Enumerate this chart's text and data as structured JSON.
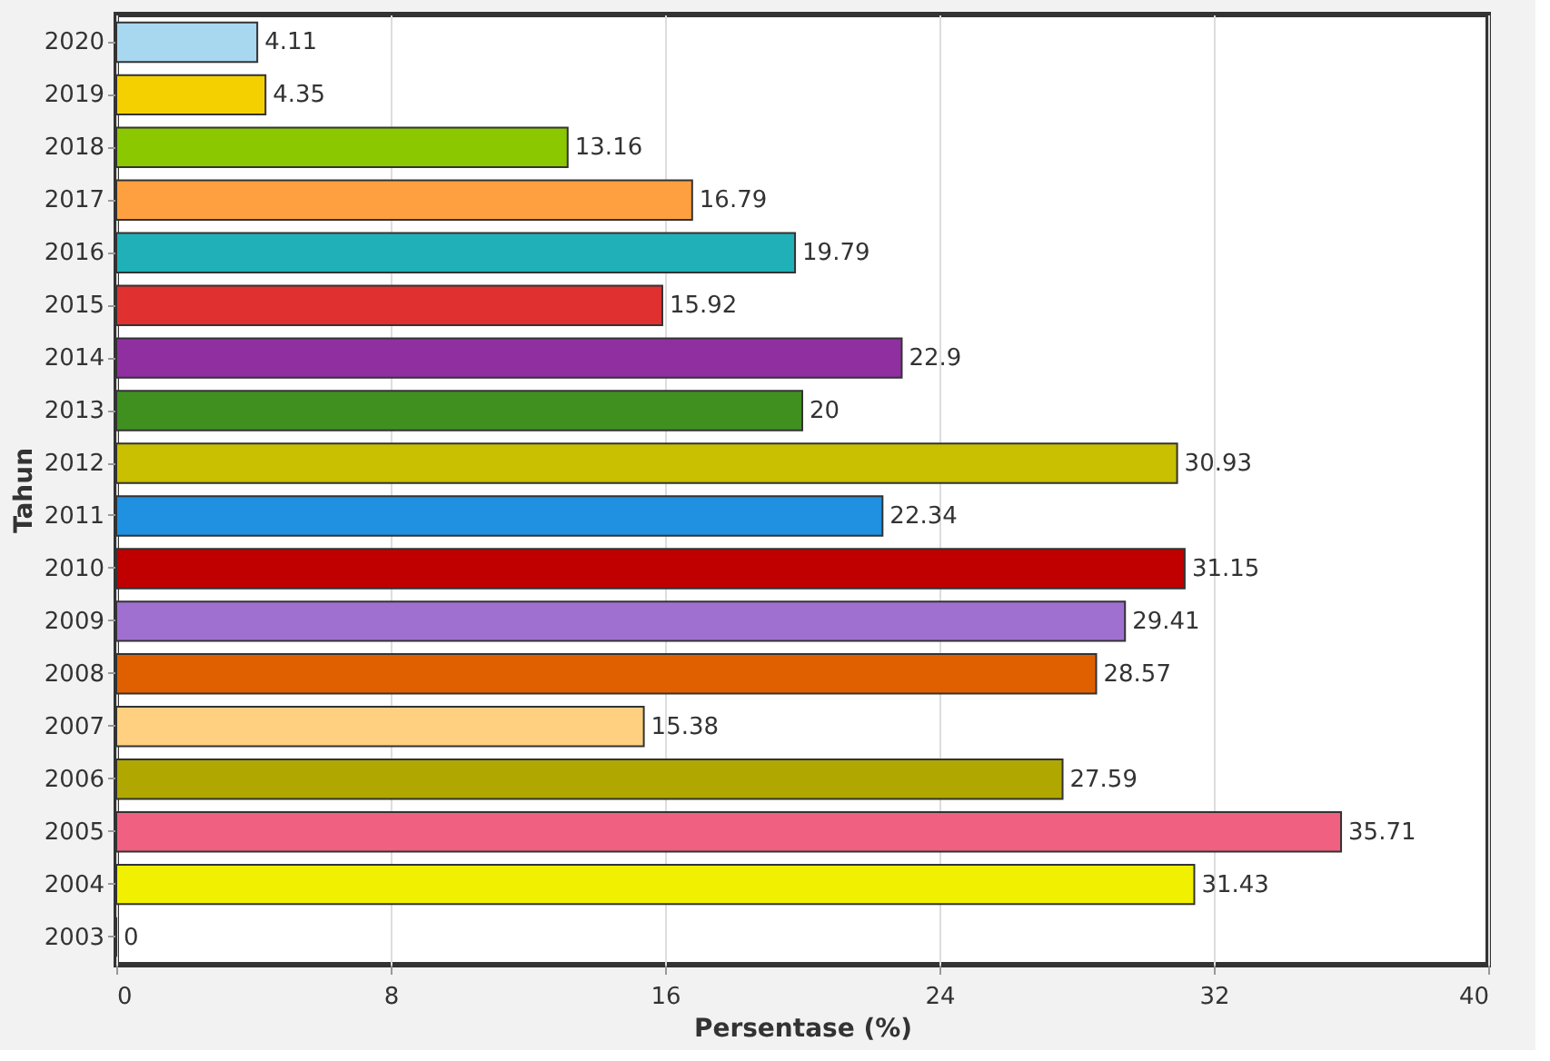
{
  "chart_data": {
    "type": "bar",
    "orientation": "horizontal",
    "xlabel": "Persentase (%)",
    "ylabel": "Tahun",
    "categories": [
      "2020",
      "2019",
      "2018",
      "2017",
      "2016",
      "2015",
      "2014",
      "2013",
      "2012",
      "2011",
      "2010",
      "2009",
      "2008",
      "2007",
      "2006",
      "2005",
      "2004",
      "2003"
    ],
    "values": [
      4.11,
      4.35,
      13.16,
      16.79,
      19.79,
      15.92,
      22.9,
      20,
      30.93,
      22.34,
      31.15,
      29.41,
      28.57,
      15.38,
      27.59,
      35.71,
      31.43,
      0
    ],
    "colors": [
      "#a8d8f0",
      "#f5d000",
      "#8cc800",
      "#ffa040",
      "#20b0b8",
      "#e03030",
      "#9030a0",
      "#409020",
      "#c8c000",
      "#2090e0",
      "#c00000",
      "#a070d0",
      "#e06000",
      "#ffd080",
      "#b0a800",
      "#f06080",
      "#f0f000",
      "#404040"
    ],
    "xlim": [
      0,
      40
    ],
    "xticks": [
      0,
      8,
      16,
      24,
      32,
      40
    ],
    "grid": "x",
    "data_labels": true
  }
}
